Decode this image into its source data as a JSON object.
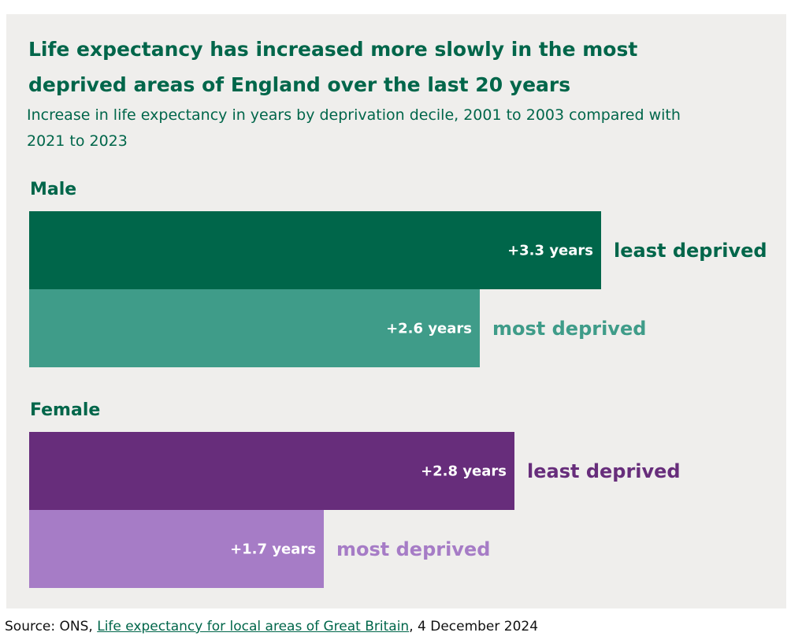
{
  "chart_data": {
    "type": "bar",
    "title": "Life expectancy has increased more slowly in the most deprived areas of England over the last 20 years",
    "subtitle": "Increase in life expectancy in years by deprivation decile, 2001 to 2003 compared with 2021 to 2023",
    "groups": [
      {
        "name": "Male",
        "bars": [
          {
            "category": "least deprived",
            "value": 3.3,
            "label": "+3.3 years",
            "color": "#00664a"
          },
          {
            "category": "most deprived",
            "value": 2.6,
            "label": "+2.6 years",
            "color": "#3f9c89"
          }
        ]
      },
      {
        "name": "Female",
        "bars": [
          {
            "category": "least deprived",
            "value": 2.8,
            "label": "+2.8 years",
            "color": "#672d7b"
          },
          {
            "category": "most deprived",
            "value": 1.7,
            "label": "+1.7 years",
            "color": "#a67cc6"
          }
        ]
      }
    ],
    "xlim": [
      0,
      4.3
    ]
  },
  "source": {
    "prefix": "Source: ONS, ",
    "link": "Life expectancy for local areas of Great Britain",
    "suffix": ", 4 December 2024"
  }
}
